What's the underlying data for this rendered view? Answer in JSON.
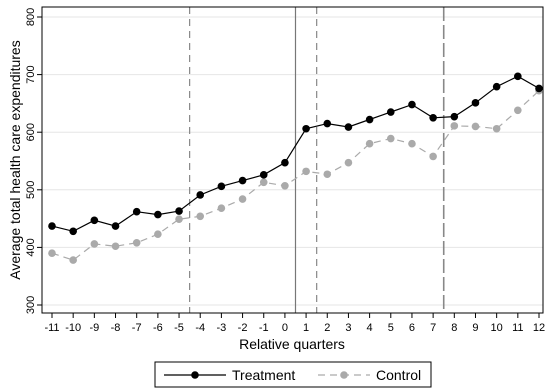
{
  "chart_data": {
    "type": "line",
    "xlabel": "Relative quarters",
    "ylabel": "Average total health care expenditures",
    "x": [
      -11,
      -10,
      -9,
      -8,
      -7,
      -6,
      -5,
      -4,
      -3,
      -2,
      -1,
      0,
      1,
      2,
      3,
      4,
      5,
      6,
      7,
      8,
      9,
      10,
      11,
      12
    ],
    "x_ticks": [
      "-11",
      "-10",
      "-9",
      "-8",
      "-7",
      "-6",
      "-5",
      "-4",
      "-3",
      "-2",
      "-1",
      "0",
      "1",
      "2",
      "3",
      "4",
      "5",
      "6",
      "7",
      "8",
      "9",
      "10",
      "11",
      "12"
    ],
    "y_ticks": [
      "300",
      "400",
      "500",
      "600",
      "700",
      "800"
    ],
    "xlim": [
      -11,
      12
    ],
    "ylim": [
      300,
      800
    ],
    "grid": "horizontal",
    "legend_position": "bottom",
    "vertical_lines": [
      {
        "x": -4.5,
        "style": "dashed"
      },
      {
        "x": 0.5,
        "style": "solid"
      },
      {
        "x": 1.5,
        "style": "dashed"
      },
      {
        "x": 7.5,
        "style": "long-dashed"
      }
    ],
    "series": [
      {
        "name": "Treatment",
        "color": "#000000",
        "line_style": "solid",
        "values": [
          437,
          428,
          447,
          437,
          462,
          457,
          463,
          491,
          506,
          516,
          526,
          547,
          606,
          615,
          609,
          622,
          635,
          648,
          625,
          627,
          651,
          679,
          697,
          676
        ]
      },
      {
        "name": "Control",
        "color": "#aaaaaa",
        "line_style": "dashed",
        "values": [
          390,
          378,
          406,
          402,
          408,
          423,
          449,
          454,
          468,
          484,
          513,
          507,
          532,
          527,
          547,
          580,
          589,
          580,
          558,
          611,
          610,
          606,
          638,
          672
        ]
      }
    ]
  }
}
